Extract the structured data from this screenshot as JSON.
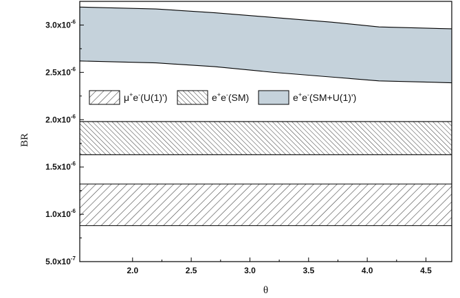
{
  "chart_data": {
    "type": "area",
    "title": "",
    "xlabel": "θ",
    "ylabel": "BR",
    "xlim": [
      1.55,
      4.72
    ],
    "ylim": [
      5e-07,
      3.25e-06
    ],
    "xticks": [
      2.0,
      2.5,
      3.0,
      3.5,
      4.0,
      4.5
    ],
    "xtick_labels": [
      "2.0",
      "2.5",
      "3.0",
      "3.5",
      "4.0",
      "4.5"
    ],
    "yticks": [
      5e-07,
      1e-06,
      1.5e-06,
      2e-06,
      2.5e-06,
      3e-06
    ],
    "ytick_labels": [
      {
        "base": "5.0x10",
        "exp": "-7"
      },
      {
        "base": "1.0x10",
        "exp": "-6"
      },
      {
        "base": "1.5x10",
        "exp": "-6"
      },
      {
        "base": "2.0x10",
        "exp": "-6"
      },
      {
        "base": "2.5x10",
        "exp": "-6"
      },
      {
        "base": "3.0x10",
        "exp": "-6"
      }
    ],
    "grid": false,
    "legend_position": "upper-middle",
    "series": [
      {
        "name": "μ+e-(U(1)')",
        "legend": {
          "a": "μ",
          "asup": "+",
          "b": "e",
          "bsup": "-",
          "rest": "(U(1)')"
        },
        "style": "hatch-wide",
        "x": [
          1.55,
          4.72
        ],
        "lower": [
          8.8e-07,
          8.8e-07
        ],
        "upper": [
          1.32e-06,
          1.32e-06
        ]
      },
      {
        "name": "e+e-(SM)",
        "legend": {
          "a": "e",
          "asup": "+",
          "b": "e",
          "bsup": "-",
          "rest": "(SM)"
        },
        "style": "hatch-dense",
        "x": [
          1.55,
          4.72
        ],
        "lower": [
          1.63e-06,
          1.63e-06
        ],
        "upper": [
          1.98e-06,
          1.98e-06
        ]
      },
      {
        "name": "e+e-(SM+U(1)')",
        "legend": {
          "a": "e",
          "asup": "+",
          "b": "e",
          "bsup": "-",
          "rest": "(SM+U(1)')"
        },
        "style": "fill",
        "x": [
          1.55,
          2.2,
          2.7,
          3.2,
          3.7,
          4.1,
          4.72
        ],
        "lower": [
          2.62e-06,
          2.6e-06,
          2.56e-06,
          2.5e-06,
          2.45e-06,
          2.41e-06,
          2.39e-06
        ],
        "upper": [
          3.19e-06,
          3.17e-06,
          3.13e-06,
          3.08e-06,
          3.03e-06,
          2.98e-06,
          2.96e-06
        ]
      }
    ],
    "colors": {
      "fill": "#c5d2db",
      "hatch": "#444444",
      "axis": "#000000"
    }
  }
}
